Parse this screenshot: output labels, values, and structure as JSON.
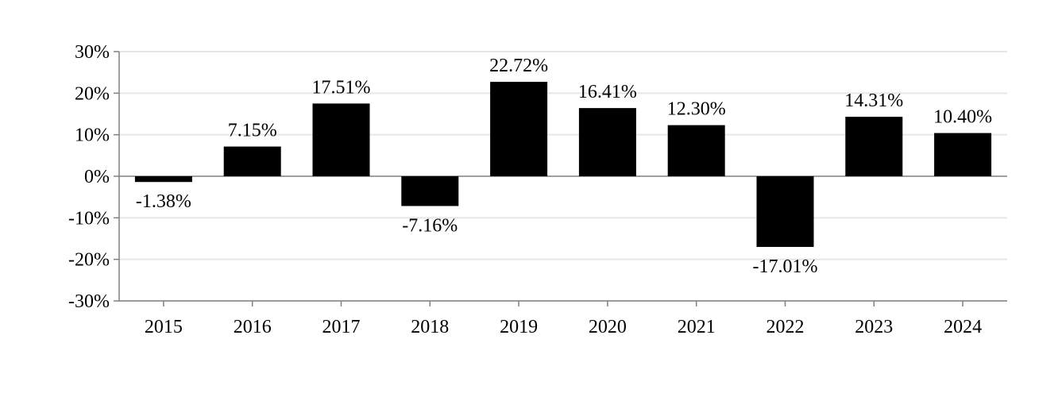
{
  "chart_data": {
    "type": "bar",
    "title": "",
    "xlabel": "",
    "ylabel": "",
    "categories": [
      "2015",
      "2016",
      "2017",
      "2018",
      "2019",
      "2020",
      "2021",
      "2022",
      "2023",
      "2024"
    ],
    "values": [
      -1.38,
      7.15,
      17.51,
      -7.16,
      22.72,
      16.41,
      12.3,
      -17.01,
      14.31,
      10.4
    ],
    "value_labels": [
      "-1.38%",
      "7.15%",
      "17.51%",
      "-7.16%",
      "22.72%",
      "16.41%",
      "12.30%",
      "-17.01%",
      "14.31%",
      "10.40%"
    ],
    "ylim": [
      -30,
      30
    ],
    "yticks": [
      30,
      20,
      10,
      0,
      -10,
      -20,
      -30
    ],
    "ytick_labels": [
      "30%",
      "20%",
      "10%",
      "0%",
      "-10%",
      "-20%",
      "-30%"
    ],
    "grid": true,
    "legend": "none",
    "colors": {
      "bar": "#000000",
      "grid": "#e6e6e6",
      "axis": "#808080"
    }
  }
}
